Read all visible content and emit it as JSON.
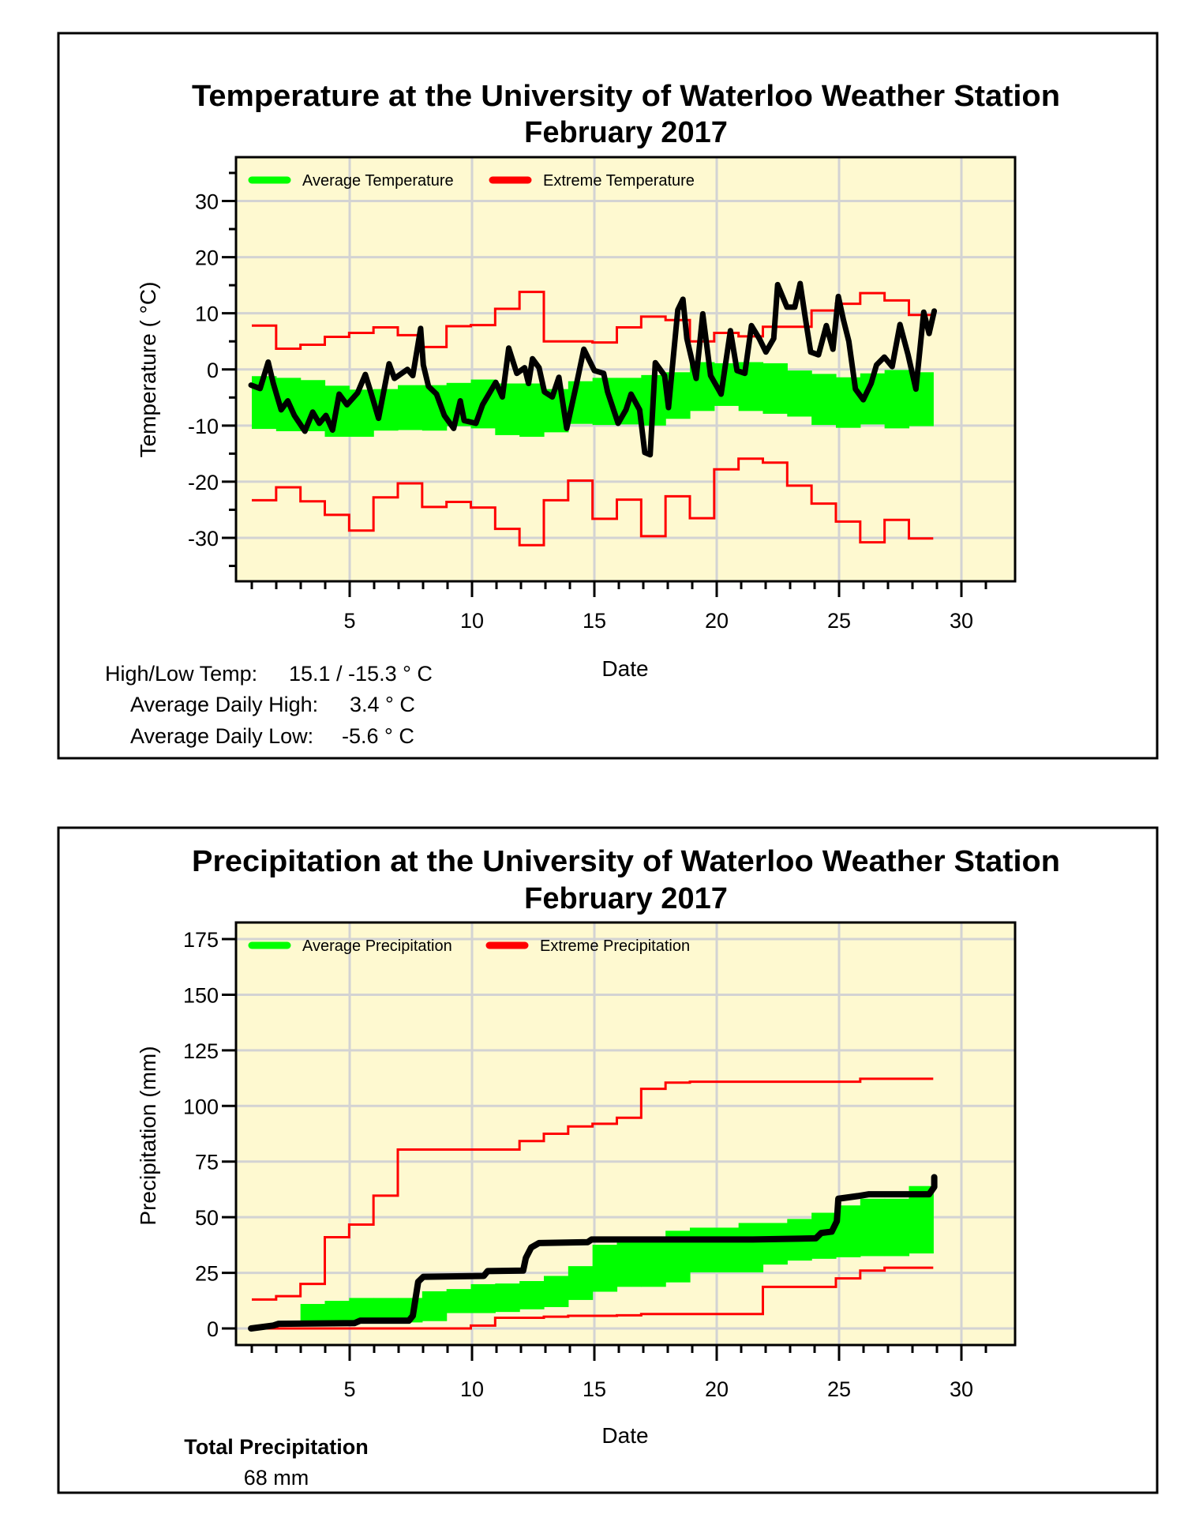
{
  "chart_data": [
    {
      "type": "line",
      "title": "Temperature at the University of Waterloo Weather Station",
      "subtitle": "February 2017",
      "xlabel": "Date",
      "ylabel": "Temperature ( °C)",
      "xlim": [
        0.35,
        32.2
      ],
      "ylim": [
        -37.7,
        37.8
      ],
      "xticks": [
        5,
        10,
        15,
        20,
        25,
        30
      ],
      "yticks": [
        -30,
        -20,
        -10,
        0,
        10,
        20,
        30
      ],
      "grid": true,
      "legend_position": "top-left",
      "legend": [
        "Average Temperature",
        "Extreme Temperature"
      ],
      "colors": {
        "average": "#00ff00",
        "extreme": "#ff0000",
        "observed": "#000000",
        "background": "#fef9d0",
        "grid": "#d3d3d3"
      },
      "days": [
        1,
        2,
        3,
        4,
        5,
        6,
        7,
        8,
        9,
        10,
        11,
        12,
        13,
        14,
        15,
        16,
        17,
        18,
        19,
        20,
        21,
        22,
        23,
        24,
        25,
        26,
        27,
        28
      ],
      "average_band_upper": [
        -1.2,
        -1.5,
        -1.9,
        -2.9,
        -3.6,
        -3.5,
        -2.8,
        -2.8,
        -2.4,
        -1.8,
        -2.5,
        -2.5,
        -3.5,
        -2.1,
        -1.5,
        -1.5,
        -1,
        -0.5,
        1.3,
        1.1,
        1.3,
        1.1,
        -0.2,
        -0.8,
        -1.4,
        -0.7,
        -0.1,
        -0.5
      ],
      "average_band_lower": [
        -10.6,
        -11,
        -11,
        -12,
        -12,
        -10.9,
        -10.8,
        -10.9,
        -10.1,
        -10.5,
        -11.7,
        -12,
        -11.2,
        -9.7,
        -9.9,
        -9.8,
        -10,
        -8.8,
        -7.4,
        -6.5,
        -7.4,
        -7.9,
        -8.4,
        -9.9,
        -10.4,
        -9.8,
        -10.5,
        -10.1
      ],
      "extreme_high": [
        7.8,
        3.7,
        4.4,
        5.8,
        6.5,
        7.5,
        6.1,
        4,
        7.7,
        7.9,
        10.8,
        13.8,
        5,
        5,
        4.8,
        7.5,
        9.4,
        8.8,
        5,
        6.5,
        5.9,
        7.6,
        7.6,
        10.5,
        11.7,
        13.6,
        12.3,
        9.7
      ],
      "extreme_low": [
        -23.3,
        -21,
        -23.5,
        -25.9,
        -28.7,
        -22.8,
        -20.3,
        -24.5,
        -23.6,
        -24.6,
        -28.4,
        -31.3,
        -23.3,
        -19.8,
        -26.6,
        -23.2,
        -29.7,
        -22.6,
        -26.5,
        -17.8,
        -15.9,
        -16.6,
        -20.7,
        -23.9,
        -27.1,
        -30.8,
        -26.8,
        -30.1
      ],
      "observed": [
        [
          0.97,
          -2.8
        ],
        [
          1.34,
          -3.4
        ],
        [
          1.67,
          1.3
        ],
        [
          1.88,
          -2.5
        ],
        [
          2.2,
          -7.2
        ],
        [
          2.47,
          -5.6
        ],
        [
          2.74,
          -8.2
        ],
        [
          3.17,
          -11
        ],
        [
          3.49,
          -7.6
        ],
        [
          3.76,
          -9.6
        ],
        [
          4.03,
          -8.2
        ],
        [
          4.3,
          -10.8
        ],
        [
          4.57,
          -4.4
        ],
        [
          4.89,
          -6.3
        ],
        [
          5.32,
          -4.2
        ],
        [
          5.64,
          -0.9
        ],
        [
          5.86,
          -4
        ],
        [
          6.18,
          -8.7
        ],
        [
          6.61,
          1
        ],
        [
          6.83,
          -1.6
        ],
        [
          7.36,
          0
        ],
        [
          7.58,
          -1.1
        ],
        [
          7.9,
          7.3
        ],
        [
          8.01,
          0.8
        ],
        [
          8.22,
          -3
        ],
        [
          8.55,
          -4.4
        ],
        [
          8.87,
          -8.2
        ],
        [
          9.25,
          -10.5
        ],
        [
          9.52,
          -5.6
        ],
        [
          9.68,
          -9.1
        ],
        [
          10.16,
          -9.6
        ],
        [
          10.43,
          -6.3
        ],
        [
          10.97,
          -2.3
        ],
        [
          11.24,
          -4.9
        ],
        [
          11.5,
          3.8
        ],
        [
          11.83,
          -0.7
        ],
        [
          12.15,
          0.3
        ],
        [
          12.31,
          -2.5
        ],
        [
          12.47,
          1.9
        ],
        [
          12.74,
          0.3
        ],
        [
          12.96,
          -4
        ],
        [
          13.28,
          -4.9
        ],
        [
          13.55,
          -1.4
        ],
        [
          13.87,
          -10.5
        ],
        [
          14.25,
          -3
        ],
        [
          14.57,
          3.6
        ],
        [
          15,
          -0.2
        ],
        [
          15.38,
          -0.7
        ],
        [
          15.54,
          -4
        ],
        [
          15.97,
          -9.6
        ],
        [
          16.29,
          -7.2
        ],
        [
          16.5,
          -4.4
        ],
        [
          16.85,
          -7.2
        ],
        [
          17.06,
          -14.8
        ],
        [
          17.28,
          -15.2
        ],
        [
          17.49,
          1.2
        ],
        [
          17.87,
          -1.1
        ],
        [
          18.03,
          -6.8
        ],
        [
          18.41,
          10.6
        ],
        [
          18.62,
          12.5
        ],
        [
          18.78,
          5.5
        ],
        [
          19.16,
          -1.6
        ],
        [
          19.43,
          9.9
        ],
        [
          19.75,
          -1.1
        ],
        [
          20.18,
          -4.4
        ],
        [
          20.56,
          6.9
        ],
        [
          20.83,
          -0.2
        ],
        [
          21.15,
          -0.7
        ],
        [
          21.42,
          7.8
        ],
        [
          21.74,
          5.5
        ],
        [
          22.01,
          3.1
        ],
        [
          22.33,
          5.5
        ],
        [
          22.49,
          15.1
        ],
        [
          22.87,
          11.1
        ],
        [
          23.19,
          11.1
        ],
        [
          23.41,
          15.3
        ],
        [
          23.62,
          9.2
        ],
        [
          23.84,
          3.1
        ],
        [
          24.16,
          2.6
        ],
        [
          24.48,
          7.8
        ],
        [
          24.75,
          3.6
        ],
        [
          24.97,
          13
        ],
        [
          25.18,
          8.8
        ],
        [
          25.4,
          5
        ],
        [
          25.67,
          -3.5
        ],
        [
          25.99,
          -5.4
        ],
        [
          26.31,
          -2.5
        ],
        [
          26.53,
          0.8
        ],
        [
          26.85,
          2.2
        ],
        [
          27.17,
          0.5
        ],
        [
          27.49,
          8
        ],
        [
          27.82,
          2.6
        ],
        [
          28.14,
          -3.5
        ],
        [
          28.46,
          10.2
        ],
        [
          28.68,
          6.4
        ],
        [
          28.89,
          10.4
        ]
      ],
      "stats": {
        "high_low_label": "High/Low Temp:",
        "high_low_value": "15.1 / -15.3 ° C",
        "avg_high_label": "Average Daily High:",
        "avg_high_value": "3.4 ° C",
        "avg_low_label": "Average Daily Low:",
        "avg_low_value": "-5.6 ° C"
      }
    },
    {
      "type": "line",
      "title": "Precipitation at the University of Waterloo Weather Station",
      "subtitle": "February 2017",
      "xlabel": "Date",
      "ylabel": "Precipitation (mm)",
      "xlim": [
        0.35,
        32.2
      ],
      "ylim": [
        -7.5,
        182.5
      ],
      "xticks": [
        5,
        10,
        15,
        20,
        25,
        30
      ],
      "yticks": [
        0,
        25,
        50,
        75,
        100,
        125,
        150,
        175
      ],
      "grid": true,
      "legend_position": "top-left",
      "legend": [
        "Average Precipitation",
        "Extreme Precipitation"
      ],
      "colors": {
        "average": "#00ff00",
        "extreme": "#ff0000",
        "observed": "#000000",
        "background": "#fef9d0",
        "grid": "#d3d3d3"
      },
      "days": [
        1,
        2,
        3,
        4,
        5,
        6,
        7,
        8,
        9,
        10,
        11,
        12,
        13,
        14,
        15,
        16,
        17,
        18,
        19,
        20,
        21,
        22,
        23,
        24,
        25,
        26,
        27,
        28
      ],
      "average_band_upper": [
        null,
        null,
        11,
        12.4,
        13.7,
        13.7,
        13.7,
        16.7,
        17.7,
        19.9,
        20.2,
        21.3,
        23.6,
        28,
        37.6,
        38.8,
        38.8,
        43.9,
        45.3,
        45.3,
        47.4,
        47.4,
        49.2,
        52,
        55.3,
        58.3,
        58.3,
        64
      ],
      "average_band_lower": [
        null,
        null,
        3.3,
        3.3,
        3.3,
        3.3,
        2.7,
        3.3,
        6.9,
        6.9,
        7.4,
        8.6,
        9.6,
        12.8,
        16.5,
        18.7,
        18.7,
        20.7,
        25.2,
        25.2,
        25.2,
        28.7,
        30.5,
        31.3,
        32,
        32.5,
        32.5,
        33.7
      ],
      "extreme_high": [
        13,
        14.5,
        20,
        41,
        46.7,
        59.7,
        80.4,
        80.4,
        80.4,
        80.4,
        80.4,
        84.2,
        87.5,
        90.8,
        92,
        94.7,
        107.7,
        110.5,
        110.9,
        110.9,
        110.9,
        110.9,
        110.9,
        110.9,
        110.9,
        112.2,
        112.2,
        112.2
      ],
      "extreme_low": [
        0,
        0,
        0,
        0,
        0,
        0,
        0,
        0,
        0,
        1.3,
        4.8,
        4.8,
        5.3,
        5.7,
        5.7,
        5.9,
        6.5,
        6.5,
        6.5,
        6.5,
        6.5,
        18.7,
        18.7,
        18.7,
        22.5,
        26,
        27.3,
        27.3
      ],
      "observed": [
        [
          0.97,
          0
        ],
        [
          1.88,
          1.3
        ],
        [
          2.1,
          2.1
        ],
        [
          5.2,
          2.4
        ],
        [
          5.43,
          3.5
        ],
        [
          7.42,
          3.5
        ],
        [
          7.58,
          5.7
        ],
        [
          7.8,
          21
        ],
        [
          8.01,
          23.2
        ],
        [
          10.48,
          23.6
        ],
        [
          10.64,
          25.8
        ],
        [
          12.09,
          26
        ],
        [
          12.2,
          31.7
        ],
        [
          12.42,
          36.4
        ],
        [
          12.74,
          38.4
        ],
        [
          14.73,
          38.8
        ],
        [
          14.89,
          40
        ],
        [
          21.47,
          40
        ],
        [
          24.05,
          40.5
        ],
        [
          24.27,
          42.9
        ],
        [
          24.7,
          43.5
        ],
        [
          24.91,
          48.2
        ],
        [
          24.97,
          58.3
        ],
        [
          25.77,
          59.5
        ],
        [
          26.2,
          60.3
        ],
        [
          28.68,
          60.3
        ],
        [
          28.89,
          63.6
        ],
        [
          28.89,
          68
        ]
      ],
      "stats": {
        "total_label": "Total Precipitation",
        "total_value": "68 mm"
      }
    }
  ]
}
